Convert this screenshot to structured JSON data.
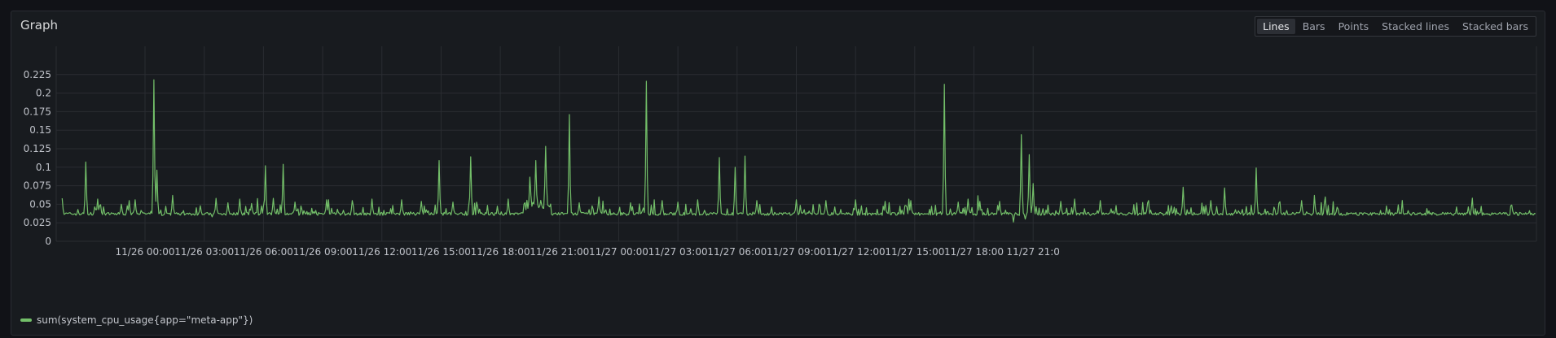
{
  "panel": {
    "title": "Graph",
    "view_options": [
      "Lines",
      "Bars",
      "Points",
      "Stacked lines",
      "Stacked bars"
    ],
    "active_option": "Lines"
  },
  "chart_data": {
    "type": "line",
    "title": "",
    "xlabel": "",
    "ylabel": "",
    "ylim": [
      0,
      0.25
    ],
    "y_ticks": [
      "0",
      "0.025",
      "0.05",
      "0.075",
      "0.1",
      "0.125",
      "0.15",
      "0.175",
      "0.2",
      "0.225"
    ],
    "x_ticks": [
      "11/26 00:00",
      "11/26 03:00",
      "11/26 06:00",
      "11/26 09:00",
      "11/26 12:00",
      "11/26 15:00",
      "11/26 18:00",
      "11/26 21:00",
      "11/27 00:00",
      "11/27 03:00",
      "11/27 06:00",
      "11/27 09:00",
      "11/27 12:00",
      "11/27 15:00",
      "11/27 18:00",
      "11/27 21:0"
    ],
    "x_range_hours": [
      -4.5,
      70.5
    ],
    "baseline": 0.037,
    "grid": true,
    "legend_position": "bottom-left",
    "series": [
      {
        "name": "sum(system_cpu_usage{app=\"meta-app\"})",
        "color": "#73bf69",
        "x_unit": "hours since 11/26 00:00",
        "spikes": [
          [
            -4.2,
            0.058
          ],
          [
            -3.0,
            0.107
          ],
          [
            -2.4,
            0.057
          ],
          [
            -1.2,
            0.05
          ],
          [
            -0.8,
            0.055
          ],
          [
            -0.5,
            0.056
          ],
          [
            0.45,
            0.218
          ],
          [
            0.6,
            0.096
          ],
          [
            1.4,
            0.062
          ],
          [
            2.8,
            0.048
          ],
          [
            3.6,
            0.058
          ],
          [
            4.2,
            0.052
          ],
          [
            4.8,
            0.057
          ],
          [
            5.4,
            0.051
          ],
          [
            6.1,
            0.102
          ],
          [
            6.5,
            0.058
          ],
          [
            7.0,
            0.104
          ],
          [
            7.6,
            0.053
          ],
          [
            9.2,
            0.056
          ],
          [
            10.5,
            0.055
          ],
          [
            11.5,
            0.057
          ],
          [
            13.0,
            0.056
          ],
          [
            14.0,
            0.054
          ],
          [
            14.9,
            0.109
          ],
          [
            15.6,
            0.053
          ],
          [
            16.5,
            0.114
          ],
          [
            18.4,
            0.057
          ],
          [
            19.5,
            0.075
          ],
          [
            19.8,
            0.095
          ],
          [
            20.3,
            0.117
          ],
          [
            21.5,
            0.171
          ],
          [
            22.0,
            0.052
          ],
          [
            23.0,
            0.06
          ],
          [
            24.6,
            0.052
          ],
          [
            25.4,
            0.216
          ],
          [
            26.2,
            0.055
          ],
          [
            27.0,
            0.053
          ],
          [
            28.0,
            0.056
          ],
          [
            29.1,
            0.113
          ],
          [
            29.9,
            0.1
          ],
          [
            30.4,
            0.115
          ],
          [
            31.0,
            0.055
          ],
          [
            33.0,
            0.056
          ],
          [
            34.5,
            0.055
          ],
          [
            36.0,
            0.056
          ],
          [
            37.5,
            0.054
          ],
          [
            38.8,
            0.055
          ],
          [
            40.5,
            0.212
          ],
          [
            41.2,
            0.053
          ],
          [
            41.7,
            0.057
          ],
          [
            42.3,
            0.054
          ],
          [
            43.3,
            0.054
          ],
          [
            44.4,
            0.144
          ],
          [
            44.8,
            0.117
          ],
          [
            45.0,
            0.078
          ],
          [
            46.4,
            0.054
          ],
          [
            47.1,
            0.057
          ],
          [
            48.4,
            0.055
          ],
          [
            50.8,
            0.052
          ],
          [
            52.6,
            0.073
          ],
          [
            54.0,
            0.055
          ],
          [
            54.7,
            0.072
          ],
          [
            56.3,
            0.099
          ],
          [
            58.6,
            0.055
          ],
          [
            59.8,
            0.06
          ],
          [
            60.4,
            0.046
          ]
        ],
        "dips": [
          [
            44.0,
            0.026
          ],
          [
            44.6,
            0.03
          ],
          [
            3.4,
            0.033
          ]
        ]
      }
    ]
  }
}
